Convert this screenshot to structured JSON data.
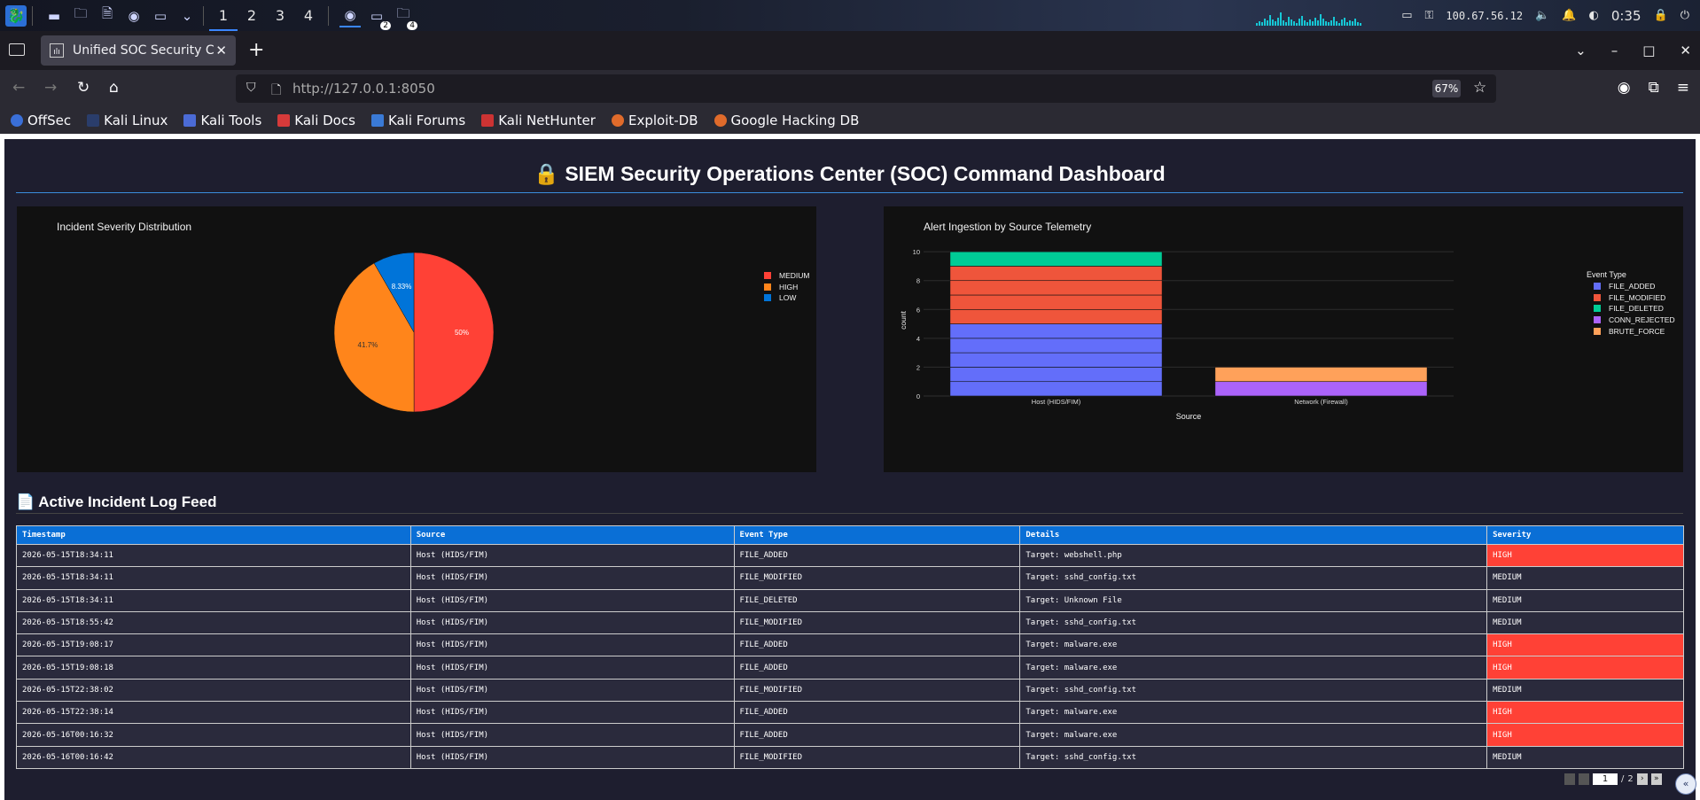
{
  "taskbar": {
    "workspaces": [
      "1",
      "2",
      "3",
      "4"
    ],
    "active_workspace": "1",
    "term_badge": "2",
    "folder_badge": "4",
    "ip": "100.67.56.12",
    "clock": "0:35"
  },
  "browser": {
    "tab_title": "Unified SOC Security Com",
    "url_base": "http://127.0.0.1",
    "url_port": ":8050",
    "zoom": "67%",
    "bookmarks": [
      "OffSec",
      "Kali Linux",
      "Kali Tools",
      "Kali Docs",
      "Kali Forums",
      "Kali NetHunter",
      "Exploit-DB",
      "Google Hacking DB"
    ]
  },
  "dashboard": {
    "title": "🔒 SIEM Security Operations Center (SOC) Command Dashboard",
    "log_title": "📄 Active Incident Log Feed"
  },
  "colors": {
    "medium": "#ff4136",
    "high": "#ff851b",
    "low": "#0074d9",
    "file_added": "#636efa",
    "file_modified": "#ef553b",
    "file_deleted": "#00cc96",
    "conn_rejected": "#ab63fa",
    "brute_force": "#ffa15a"
  },
  "chart_data": [
    {
      "type": "pie",
      "title": "Incident Severity Distribution",
      "labels": [
        "MEDIUM",
        "HIGH",
        "LOW"
      ],
      "values": [
        50,
        41.7,
        8.33
      ],
      "slice_labels": [
        "50%",
        "41.7%",
        "8.33%"
      ],
      "legend": "right"
    },
    {
      "type": "bar",
      "stacked": true,
      "title": "Alert Ingestion by Source Telemetry",
      "xlabel": "Source",
      "ylabel": "count",
      "legend_title": "Event Type",
      "legend": "right",
      "categories": [
        "Host (HIDS/FIM)",
        "Network (Firewall)"
      ],
      "yticks": [
        0,
        2,
        4,
        6,
        8,
        10
      ],
      "ylim": [
        0,
        10.5
      ],
      "series": [
        {
          "name": "FILE_ADDED",
          "values": [
            5,
            0
          ]
        },
        {
          "name": "FILE_MODIFIED",
          "values": [
            4,
            0
          ]
        },
        {
          "name": "FILE_DELETED",
          "values": [
            1,
            0
          ]
        },
        {
          "name": "CONN_REJECTED",
          "values": [
            0,
            1
          ]
        },
        {
          "name": "BRUTE_FORCE",
          "values": [
            0,
            1
          ]
        }
      ]
    }
  ],
  "log": {
    "columns": [
      "Timestamp",
      "Source",
      "Event Type",
      "Details",
      "Severity"
    ],
    "rows": [
      [
        "2026-05-15T18:34:11",
        "Host (HIDS/FIM)",
        "FILE_ADDED",
        "Target: webshell.php",
        "HIGH"
      ],
      [
        "2026-05-15T18:34:11",
        "Host (HIDS/FIM)",
        "FILE_MODIFIED",
        "Target: sshd_config.txt",
        "MEDIUM"
      ],
      [
        "2026-05-15T18:34:11",
        "Host (HIDS/FIM)",
        "FILE_DELETED",
        "Target: Unknown File",
        "MEDIUM"
      ],
      [
        "2026-05-15T18:55:42",
        "Host (HIDS/FIM)",
        "FILE_MODIFIED",
        "Target: sshd_config.txt",
        "MEDIUM"
      ],
      [
        "2026-05-15T19:08:17",
        "Host (HIDS/FIM)",
        "FILE_ADDED",
        "Target: malware.exe",
        "HIGH"
      ],
      [
        "2026-05-15T19:08:18",
        "Host (HIDS/FIM)",
        "FILE_ADDED",
        "Target: malware.exe",
        "HIGH"
      ],
      [
        "2026-05-15T22:38:02",
        "Host (HIDS/FIM)",
        "FILE_MODIFIED",
        "Target: sshd_config.txt",
        "MEDIUM"
      ],
      [
        "2026-05-15T22:38:14",
        "Host (HIDS/FIM)",
        "FILE_ADDED",
        "Target: malware.exe",
        "HIGH"
      ],
      [
        "2026-05-16T00:16:32",
        "Host (HIDS/FIM)",
        "FILE_ADDED",
        "Target: malware.exe",
        "HIGH"
      ],
      [
        "2026-05-16T00:16:42",
        "Host (HIDS/FIM)",
        "FILE_MODIFIED",
        "Target: sshd_config.txt",
        "MEDIUM"
      ]
    ],
    "page": "1",
    "page_total": "2"
  }
}
